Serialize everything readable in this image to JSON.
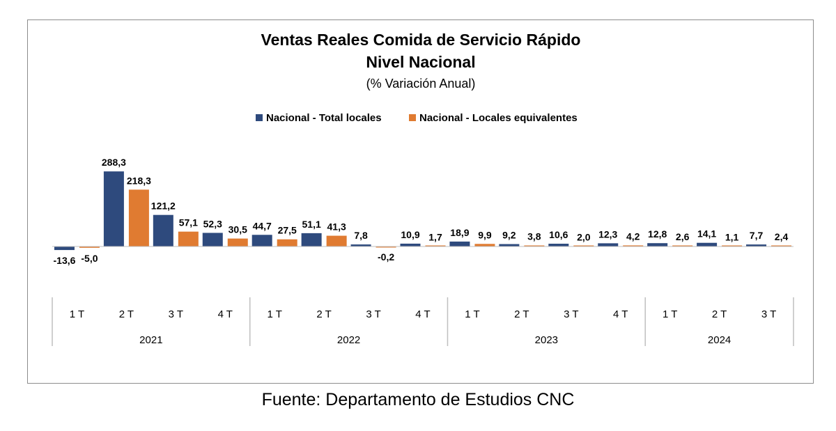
{
  "source_note": "Fuente: Departamento de Estudios CNC",
  "colors": {
    "series1": "#2e4a7d",
    "series2": "#e07b31",
    "frame": "#8c8c8c",
    "axis": "#bfbfbf"
  },
  "chart_data": {
    "type": "bar",
    "title": "Ventas Reales Comida de Servicio Rápido",
    "title_line2": "Nivel Nacional",
    "subtitle": "(% Variación Anual)",
    "legend_position": "top",
    "grid": false,
    "ylim": [
      -20,
      300
    ],
    "categories": [
      "1 T",
      "2 T",
      "3 T",
      "4 T",
      "1 T",
      "2 T",
      "3 T",
      "4 T",
      "1 T",
      "2 T",
      "3 T",
      "4 T",
      "1 T",
      "2 T",
      "3 T"
    ],
    "groups": [
      {
        "label": "2021",
        "count": 4
      },
      {
        "label": "2022",
        "count": 4
      },
      {
        "label": "2023",
        "count": 4
      },
      {
        "label": "2024",
        "count": 3
      }
    ],
    "series": [
      {
        "name": "Nacional - Total locales",
        "color": "#2e4a7d",
        "values": [
          -13.6,
          288.3,
          121.2,
          52.3,
          44.7,
          51.1,
          7.8,
          10.9,
          18.9,
          9.2,
          10.6,
          12.3,
          12.8,
          14.1,
          7.7
        ],
        "labels": [
          "-13,6",
          "288,3",
          "121,2",
          "52,3",
          "44,7",
          "51,1",
          "7,8",
          "10,9",
          "18,9",
          "9,2",
          "10,6",
          "12,3",
          "12,8",
          "14,1",
          "7,7"
        ]
      },
      {
        "name": "Nacional - Locales equivalentes",
        "color": "#e07b31",
        "values": [
          -5.0,
          218.3,
          57.1,
          30.5,
          27.5,
          41.3,
          -0.2,
          1.7,
          9.9,
          3.8,
          2.0,
          4.2,
          2.6,
          1.1,
          2.4
        ],
        "labels": [
          "-5,0",
          "218,3",
          "57,1",
          "30,5",
          "27,5",
          "41,3",
          "-0,2",
          "1,7",
          "9,9",
          "3,8",
          "2,0",
          "4,2",
          "2,6",
          "1,1",
          "2,4"
        ]
      }
    ]
  }
}
